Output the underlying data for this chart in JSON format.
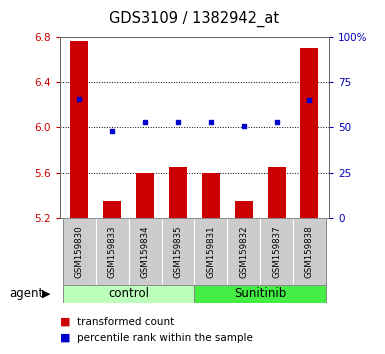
{
  "title": "GDS3109 / 1382942_at",
  "samples": [
    "GSM159830",
    "GSM159833",
    "GSM159834",
    "GSM159835",
    "GSM159831",
    "GSM159832",
    "GSM159837",
    "GSM159838"
  ],
  "red_values": [
    6.77,
    5.35,
    5.6,
    5.65,
    5.6,
    5.35,
    5.65,
    6.7
  ],
  "blue_values": [
    66,
    48,
    53,
    53,
    53,
    51,
    53,
    65
  ],
  "y_min": 5.2,
  "y_max": 6.8,
  "y_ticks": [
    5.2,
    5.6,
    6.0,
    6.4,
    6.8
  ],
  "y2_ticks": [
    0,
    25,
    50,
    75,
    100
  ],
  "bar_color": "#cc0000",
  "dot_color": "#0000cc",
  "left_axis_color": "#cc0000",
  "right_axis_color": "#0000bb",
  "bar_bottom": 5.2,
  "control_color": "#bbffbb",
  "sunitinib_color": "#44ee44",
  "cell_bg": "#cccccc"
}
